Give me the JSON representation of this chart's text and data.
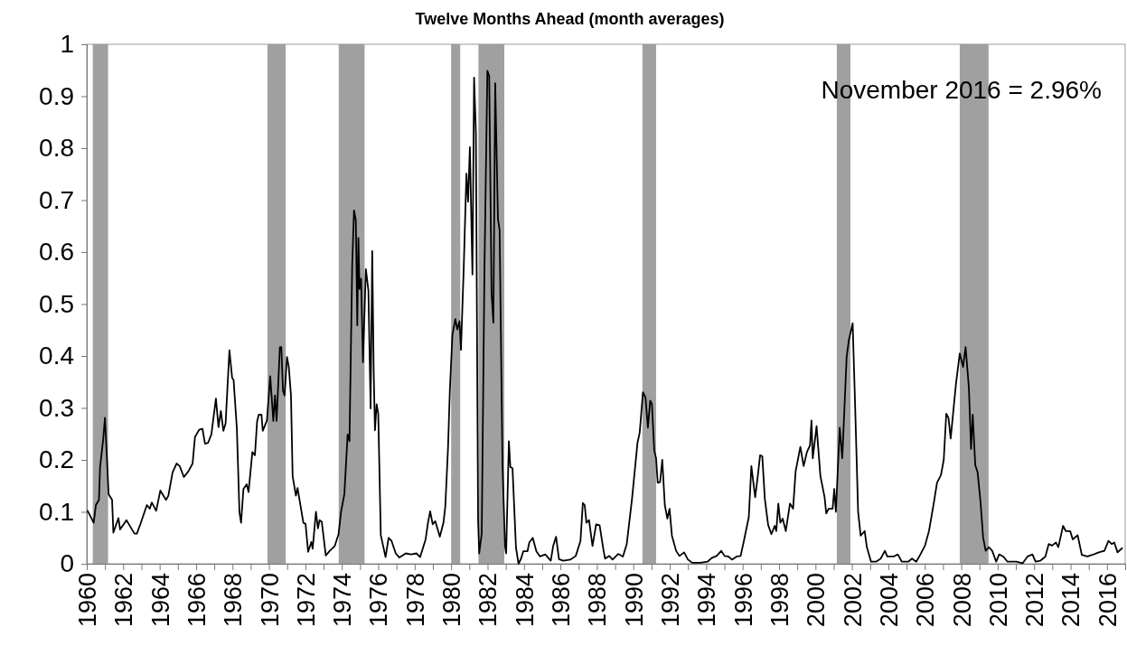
{
  "chart_data": {
    "type": "line",
    "title": "Twelve Months Ahead (month averages)",
    "annotations": [
      "November 2016 = 2.96%"
    ],
    "xlim": [
      1960,
      2017
    ],
    "xticks": [
      1960,
      {
        "value": 1961,
        "label": null
      },
      1962,
      {
        "value": 1963,
        "label": null
      },
      1964,
      {
        "value": 1965,
        "label": null
      },
      1966,
      {
        "value": 1967,
        "label": null
      },
      1968,
      {
        "value": 1969,
        "label": null
      },
      1970,
      {
        "value": 1971,
        "label": null
      },
      1972,
      {
        "value": 1973,
        "label": null
      },
      1974,
      {
        "value": 1975,
        "label": null
      },
      1976,
      {
        "value": 1977,
        "label": null
      },
      1978,
      {
        "value": 1979,
        "label": null
      },
      1980,
      {
        "value": 1981,
        "label": null
      },
      1982,
      {
        "value": 1983,
        "label": null
      },
      1984,
      {
        "value": 1985,
        "label": null
      },
      1986,
      {
        "value": 1987,
        "label": null
      },
      1988,
      {
        "value": 1989,
        "label": null
      },
      1990,
      {
        "value": 1991,
        "label": null
      },
      1992,
      {
        "value": 1993,
        "label": null
      },
      1994,
      {
        "value": 1995,
        "label": null
      },
      1996,
      {
        "value": 1997,
        "label": null
      },
      1998,
      {
        "value": 1999,
        "label": null
      },
      2000,
      {
        "value": 2001,
        "label": null
      },
      2002,
      {
        "value": 2003,
        "label": null
      },
      2004,
      {
        "value": 2005,
        "label": null
      },
      2006,
      {
        "value": 2007,
        "label": null
      },
      2008,
      {
        "value": 2009,
        "label": null
      },
      2010,
      {
        "value": 2011,
        "label": null
      },
      2012,
      {
        "value": 2013,
        "label": null
      },
      2014,
      {
        "value": 2015,
        "label": null
      },
      2016,
      {
        "value": 2017,
        "label": null
      }
    ],
    "ylim": [
      0,
      1
    ],
    "yticks": [
      0,
      0.1,
      0.2,
      0.3,
      0.4,
      0.5,
      0.6,
      0.7,
      0.8,
      0.9,
      1
    ],
    "grid": false,
    "marker": "none",
    "line_style": "solid",
    "bands": [
      {
        "axis": "x",
        "from": 1960.33,
        "to": 1961.17,
        "color": "#a0a0a0"
      },
      {
        "axis": "x",
        "from": 1969.92,
        "to": 1970.92,
        "color": "#a0a0a0"
      },
      {
        "axis": "x",
        "from": 1973.83,
        "to": 1975.25,
        "color": "#a0a0a0"
      },
      {
        "axis": "x",
        "from": 1980.0,
        "to": 1980.5,
        "color": "#a0a0a0"
      },
      {
        "axis": "x",
        "from": 1981.5,
        "to": 1982.92,
        "color": "#a0a0a0"
      },
      {
        "axis": "x",
        "from": 1990.5,
        "to": 1991.25,
        "color": "#a0a0a0"
      },
      {
        "axis": "x",
        "from": 2001.17,
        "to": 2001.92,
        "color": "#a0a0a0"
      },
      {
        "axis": "x",
        "from": 2007.92,
        "to": 2009.5,
        "color": "#a0a0a0"
      }
    ],
    "series": [
      {
        "color": "#000000",
        "x": [
          1960.05,
          1960.38,
          1960.5,
          1960.67,
          1960.73,
          1960.9,
          1961.0,
          1961.2,
          1961.39,
          1961.46,
          1961.74,
          1961.83,
          1962.18,
          1962.33,
          1962.62,
          1962.75,
          1962.95,
          1963.3,
          1963.46,
          1963.57,
          1963.81,
          1964.04,
          1964.35,
          1964.48,
          1964.71,
          1964.93,
          1965.1,
          1965.33,
          1965.58,
          1965.81,
          1965.94,
          1966.17,
          1966.35,
          1966.49,
          1966.66,
          1966.84,
          1967.09,
          1967.23,
          1967.36,
          1967.5,
          1967.62,
          1967.83,
          1967.98,
          1968.06,
          1968.24,
          1968.38,
          1968.47,
          1968.6,
          1968.78,
          1968.88,
          1969.09,
          1969.23,
          1969.35,
          1969.44,
          1969.59,
          1969.66,
          1969.89,
          1970.07,
          1970.24,
          1970.33,
          1970.42,
          1970.6,
          1970.68,
          1970.77,
          1970.86,
          1970.99,
          1971.09,
          1971.21,
          1971.3,
          1971.48,
          1971.57,
          1971.89,
          1972.01,
          1972.15,
          1972.33,
          1972.4,
          1972.58,
          1972.69,
          1972.78,
          1972.9,
          1973.12,
          1973.34,
          1973.61,
          1973.82,
          1973.96,
          1974.14,
          1974.32,
          1974.42,
          1974.57,
          1974.67,
          1974.77,
          1974.85,
          1974.91,
          1974.97,
          1975.06,
          1975.16,
          1975.32,
          1975.46,
          1975.58,
          1975.67,
          1975.75,
          1975.82,
          1975.91,
          1976.0,
          1976.14,
          1976.4,
          1976.57,
          1976.73,
          1976.96,
          1977.16,
          1977.51,
          1977.8,
          1978.1,
          1978.3,
          1978.6,
          1978.73,
          1978.85,
          1978.99,
          1979.13,
          1979.38,
          1979.58,
          1979.68,
          1979.83,
          1979.93,
          1980.07,
          1980.23,
          1980.34,
          1980.46,
          1980.54,
          1980.69,
          1980.84,
          1980.93,
          1981.03,
          1981.17,
          1981.26,
          1981.36,
          1981.48,
          1981.54,
          1981.68,
          1981.83,
          1981.99,
          1982.09,
          1982.22,
          1982.32,
          1982.42,
          1982.57,
          1982.66,
          1982.82,
          1982.96,
          1983.02,
          1983.17,
          1983.25,
          1983.37,
          1983.56,
          1983.7,
          1983.84,
          1983.96,
          1984.19,
          1984.29,
          1984.48,
          1984.68,
          1984.88,
          1985.17,
          1985.47,
          1985.6,
          1985.76,
          1985.92,
          1986.15,
          1986.54,
          1986.84,
          1987.1,
          1987.23,
          1987.33,
          1987.43,
          1987.57,
          1987.76,
          1987.96,
          1988.15,
          1988.37,
          1988.45,
          1988.68,
          1988.86,
          1989.17,
          1989.43,
          1989.64,
          1989.93,
          1990.23,
          1990.35,
          1990.53,
          1990.67,
          1990.8,
          1990.93,
          1991.02,
          1991.15,
          1991.25,
          1991.34,
          1991.47,
          1991.59,
          1991.73,
          1991.87,
          1991.99,
          1992.12,
          1992.35,
          1992.53,
          1992.79,
          1993.0,
          1993.23,
          1993.68,
          1994.07,
          1994.3,
          1994.57,
          1994.83,
          1995.01,
          1995.22,
          1995.42,
          1995.67,
          1995.89,
          1996.07,
          1996.34,
          1996.48,
          1996.69,
          1996.84,
          1996.96,
          1997.08,
          1997.22,
          1997.4,
          1997.58,
          1997.76,
          1997.85,
          1997.96,
          1998.07,
          1998.2,
          1998.37,
          1998.6,
          1998.77,
          1998.91,
          1999.17,
          1999.35,
          1999.53,
          1999.7,
          1999.78,
          1999.85,
          2000.06,
          2000.27,
          2000.5,
          2000.59,
          2000.72,
          2000.94,
          2001.03,
          2001.12,
          2001.33,
          2001.47,
          2001.71,
          2001.83,
          2002.04,
          2002.16,
          2002.34,
          2002.48,
          2002.7,
          2002.82,
          2003.05,
          2003.32,
          2003.58,
          2003.81,
          2003.94,
          2004.29,
          2004.52,
          2004.74,
          2005.09,
          2005.3,
          2005.53,
          2005.76,
          2006.01,
          2006.23,
          2006.5,
          2006.67,
          2006.89,
          2007.04,
          2007.18,
          2007.3,
          2007.42,
          2007.71,
          2007.92,
          2008.1,
          2008.24,
          2008.42,
          2008.54,
          2008.63,
          2008.77,
          2008.9,
          2009.06,
          2009.2,
          2009.34,
          2009.52,
          2009.7,
          2009.92,
          2010.08,
          2010.31,
          2010.54,
          2011.02,
          2011.37,
          2011.64,
          2011.91,
          2012.08,
          2012.35,
          2012.62,
          2012.8,
          2012.98,
          2013.2,
          2013.33,
          2013.59,
          2013.74,
          2013.98,
          2014.12,
          2014.39,
          2014.62,
          2014.92,
          2015.19,
          2015.55,
          2015.86,
          2016.08,
          2016.26,
          2016.4,
          2016.58,
          2016.83
        ],
        "values": [
          0.102,
          0.079,
          0.113,
          0.123,
          0.186,
          0.239,
          0.281,
          0.134,
          0.123,
          0.06,
          0.088,
          0.066,
          0.084,
          0.075,
          0.058,
          0.058,
          0.077,
          0.113,
          0.106,
          0.118,
          0.102,
          0.141,
          0.123,
          0.131,
          0.176,
          0.193,
          0.188,
          0.167,
          0.178,
          0.193,
          0.244,
          0.258,
          0.26,
          0.231,
          0.233,
          0.249,
          0.318,
          0.263,
          0.294,
          0.256,
          0.27,
          0.411,
          0.358,
          0.354,
          0.26,
          0.1,
          0.079,
          0.144,
          0.153,
          0.138,
          0.215,
          0.209,
          0.274,
          0.287,
          0.287,
          0.256,
          0.276,
          0.361,
          0.275,
          0.324,
          0.275,
          0.417,
          0.417,
          0.333,
          0.324,
          0.398,
          0.379,
          0.324,
          0.169,
          0.131,
          0.146,
          0.079,
          0.077,
          0.023,
          0.042,
          0.029,
          0.1,
          0.068,
          0.084,
          0.081,
          0.016,
          0.025,
          0.034,
          0.057,
          0.1,
          0.134,
          0.249,
          0.236,
          0.575,
          0.68,
          0.661,
          0.459,
          0.627,
          0.529,
          0.549,
          0.388,
          0.567,
          0.526,
          0.299,
          0.602,
          0.368,
          0.257,
          0.307,
          0.289,
          0.055,
          0.013,
          0.05,
          0.044,
          0.02,
          0.012,
          0.02,
          0.018,
          0.02,
          0.013,
          0.047,
          0.079,
          0.101,
          0.076,
          0.082,
          0.052,
          0.079,
          0.11,
          0.223,
          0.333,
          0.44,
          0.471,
          0.451,
          0.467,
          0.412,
          0.567,
          0.751,
          0.697,
          0.802,
          0.557,
          0.936,
          0.829,
          0.085,
          0.02,
          0.058,
          0.567,
          0.949,
          0.939,
          0.519,
          0.464,
          0.925,
          0.664,
          0.643,
          0.189,
          0.034,
          0.02,
          0.236,
          0.186,
          0.184,
          0.031,
          0.0,
          0.01,
          0.024,
          0.024,
          0.041,
          0.05,
          0.024,
          0.014,
          0.018,
          0.006,
          0.034,
          0.052,
          0.009,
          0.006,
          0.008,
          0.015,
          0.044,
          0.117,
          0.113,
          0.079,
          0.084,
          0.034,
          0.076,
          0.074,
          0.025,
          0.01,
          0.015,
          0.008,
          0.019,
          0.014,
          0.038,
          0.125,
          0.233,
          0.252,
          0.33,
          0.32,
          0.262,
          0.314,
          0.308,
          0.218,
          0.203,
          0.156,
          0.157,
          0.2,
          0.113,
          0.087,
          0.106,
          0.054,
          0.025,
          0.015,
          0.022,
          0.008,
          0.002,
          0.002,
          0.004,
          0.011,
          0.015,
          0.025,
          0.015,
          0.014,
          0.008,
          0.014,
          0.015,
          0.044,
          0.09,
          0.188,
          0.128,
          0.171,
          0.209,
          0.207,
          0.125,
          0.075,
          0.057,
          0.073,
          0.063,
          0.116,
          0.079,
          0.087,
          0.063,
          0.116,
          0.106,
          0.178,
          0.225,
          0.188,
          0.215,
          0.228,
          0.276,
          0.203,
          0.265,
          0.169,
          0.128,
          0.097,
          0.106,
          0.106,
          0.144,
          0.1,
          0.262,
          0.203,
          0.398,
          0.43,
          0.463,
          0.324,
          0.1,
          0.054,
          0.063,
          0.032,
          0.004,
          0.004,
          0.01,
          0.025,
          0.014,
          0.014,
          0.018,
          0.004,
          0.004,
          0.01,
          0.004,
          0.018,
          0.035,
          0.063,
          0.118,
          0.156,
          0.171,
          0.2,
          0.289,
          0.281,
          0.241,
          0.346,
          0.405,
          0.379,
          0.417,
          0.339,
          0.221,
          0.287,
          0.19,
          0.176,
          0.119,
          0.051,
          0.025,
          0.032,
          0.025,
          0.004,
          0.018,
          0.014,
          0.004,
          0.004,
          0.001,
          0.014,
          0.018,
          0.004,
          0.006,
          0.014,
          0.038,
          0.035,
          0.041,
          0.032,
          0.073,
          0.063,
          0.063,
          0.047,
          0.055,
          0.017,
          0.014,
          0.017,
          0.022,
          0.025,
          0.044,
          0.038,
          0.041,
          0.022,
          0.03
        ]
      }
    ]
  }
}
